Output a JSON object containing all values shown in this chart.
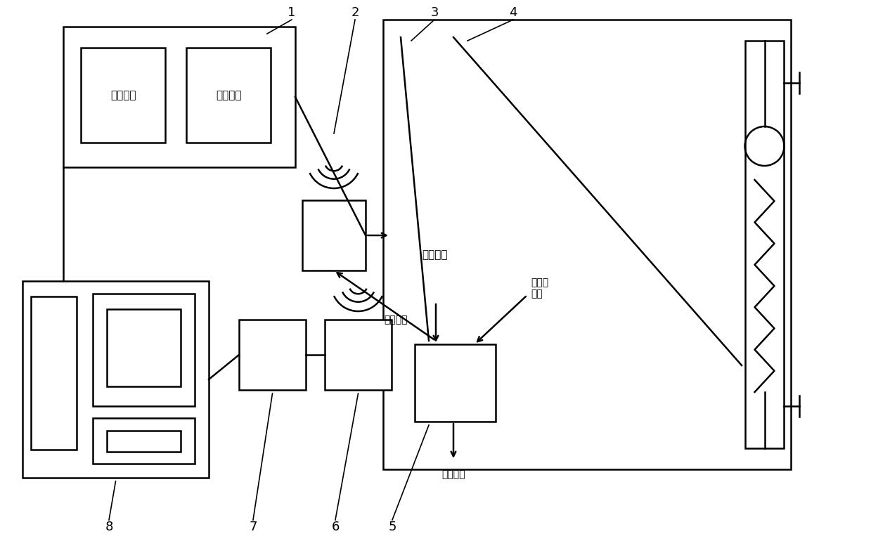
{
  "bg_color": "#ffffff",
  "line_color": "#000000",
  "fig_width": 12.39,
  "fig_height": 7.7,
  "dpi": 100,
  "label_1": "1",
  "label_2": "2",
  "label_3": "3",
  "label_4": "4",
  "label_5": "5",
  "label_6": "6",
  "label_7": "7",
  "label_8": "8",
  "text_data_calc": "数据计算",
  "text_data_store": "数据存储",
  "text_wireless": "无线传输",
  "text_indoor": "室内温度",
  "text_heater": "电暖气\n温度",
  "text_outdoor": "室外温度"
}
